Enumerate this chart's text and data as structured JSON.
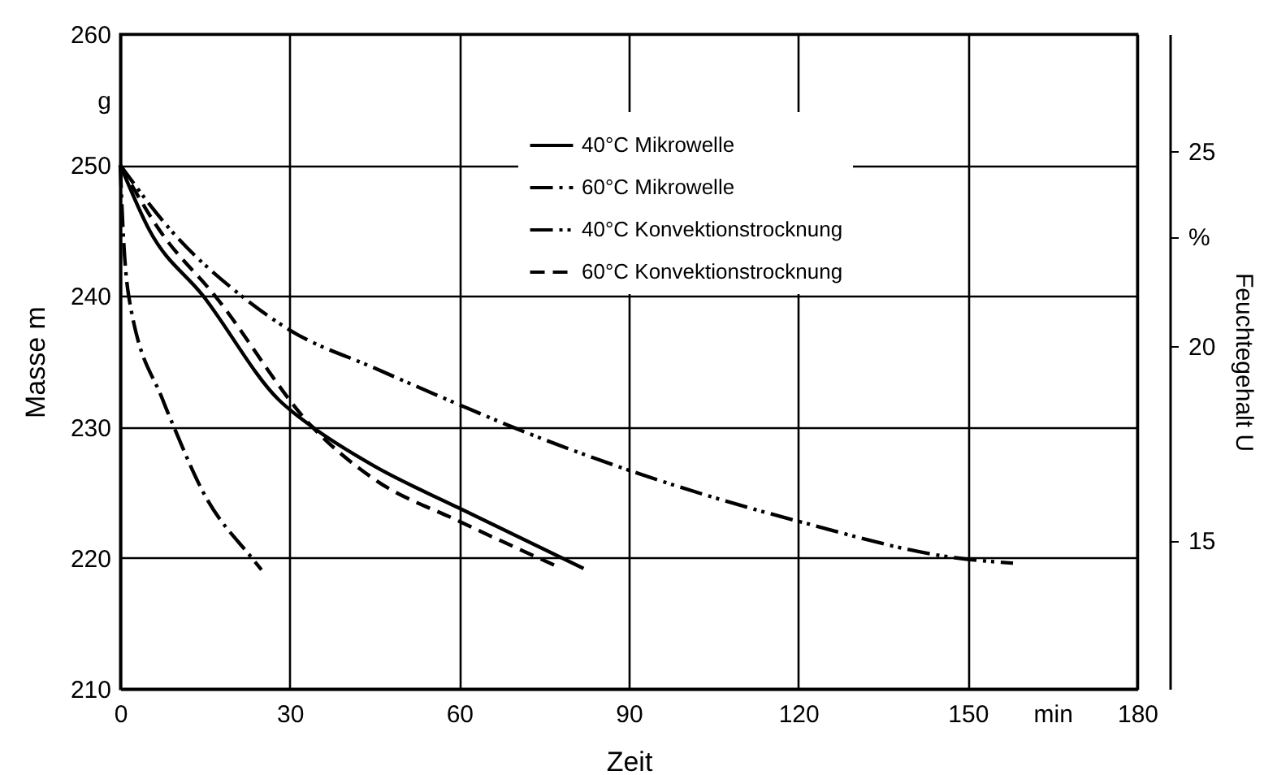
{
  "chart_data": {
    "type": "line",
    "xlabel": "Zeit",
    "ylabel": "Masse m",
    "y2label": "Feuchtegehalt U",
    "xlim": [
      0,
      180
    ],
    "xticks": [
      0,
      30,
      60,
      90,
      120,
      150,
      {
        "value": 165,
        "label": "min"
      },
      180
    ],
    "ylim": [
      210,
      260
    ],
    "yticks": [
      210,
      220,
      230,
      240,
      250,
      {
        "value": 255,
        "label": "g"
      },
      260
    ],
    "y2lim": [
      11.3,
      28.1
    ],
    "y2ticks": [
      15,
      20,
      {
        "value": 22.8,
        "label": "%"
      },
      25
    ],
    "grid": true,
    "legend": "top right",
    "series": [
      {
        "name": "40°C Mikrowelle",
        "color": "#000000",
        "line_style": "solid",
        "x": [
          0,
          5.2,
          14.7,
          28,
          34,
          45,
          60,
          82
        ],
        "values": [
          250,
          245,
          240,
          232.1,
          230,
          227,
          223.8,
          219.2
        ]
      },
      {
        "name": "60°C Mikrowelle",
        "color": "#000000",
        "line_style": "dashdot",
        "x": [
          0,
          0.5,
          1.5,
          7.5,
          9.5,
          14.7,
          23.3,
          25
        ],
        "values": [
          250,
          245,
          240,
          232.1,
          230,
          225,
          220,
          219.1
        ]
      },
      {
        "name": "40°C Konvektionstrocknung",
        "color": "#000000",
        "line_style": "dashdotdot",
        "x": [
          0,
          9,
          21.5,
          30,
          45,
          60,
          69.4,
          90,
          120,
          148,
          158
        ],
        "values": [
          250,
          245,
          240,
          237.4,
          234.5,
          231.7,
          230,
          226.7,
          222.8,
          220,
          219.6
        ]
      },
      {
        "name": "60°C Konvektionstrocknung",
        "color": "#000000",
        "line_style": "dashed",
        "x": [
          0,
          7,
          16.8,
          34,
          45,
          60,
          77.6
        ],
        "values": [
          250,
          245,
          240,
          230,
          226,
          222.8,
          219.3
        ]
      }
    ]
  }
}
